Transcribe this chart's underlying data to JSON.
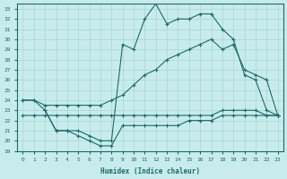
{
  "xlabel": "Humidex (Indice chaleur)",
  "ylabel": "",
  "background_color": "#c8ecec",
  "grid_color": "#aad4d4",
  "line_color": "#1a6b6b",
  "xlim": [
    -0.5,
    23.5
  ],
  "ylim": [
    19,
    33.5
  ],
  "yticks": [
    19,
    20,
    21,
    22,
    23,
    24,
    25,
    26,
    27,
    28,
    29,
    30,
    31,
    32,
    33
  ],
  "xticks": [
    0,
    1,
    2,
    3,
    4,
    5,
    6,
    7,
    8,
    9,
    10,
    11,
    12,
    13,
    14,
    15,
    16,
    17,
    18,
    19,
    20,
    21,
    22,
    23
  ],
  "series": [
    {
      "x": [
        0,
        1,
        2,
        3,
        4,
        5,
        6,
        7,
        8,
        9,
        10,
        11,
        12,
        13,
        14,
        15,
        16,
        17,
        18,
        19,
        20,
        21,
        22,
        23
      ],
      "y": [
        22.5,
        22.5,
        22.5,
        22.5,
        22.5,
        22.5,
        22.5,
        22.5,
        22.5,
        22.5,
        22.5,
        22.5,
        22.5,
        22.5,
        22.5,
        22.5,
        22.5,
        22.5,
        23,
        23,
        23,
        23,
        22.5,
        22.5
      ]
    },
    {
      "x": [
        0,
        1,
        2,
        3,
        4,
        5,
        6,
        7,
        8,
        9,
        10,
        11,
        12,
        13,
        14,
        15,
        16,
        17,
        18,
        19,
        20,
        21,
        22,
        23
      ],
      "y": [
        24,
        24,
        23.5,
        23.5,
        23.5,
        23.5,
        23.5,
        23.5,
        24,
        24.5,
        25.5,
        26.5,
        27,
        28,
        28.5,
        29,
        29.5,
        30,
        29,
        29.5,
        27,
        26.5,
        26,
        22.5
      ]
    },
    {
      "x": [
        0,
        1,
        2,
        3,
        4,
        5,
        6,
        7,
        8,
        9,
        10,
        11,
        12,
        13,
        14,
        15,
        16,
        17,
        18,
        19,
        20,
        21,
        22,
        23
      ],
      "y": [
        24,
        24,
        23,
        21,
        21,
        21,
        20.5,
        20,
        20,
        29.5,
        29,
        32,
        33.5,
        31.5,
        32,
        32,
        32.5,
        32.5,
        31,
        30,
        26.5,
        26,
        23,
        22.5
      ]
    },
    {
      "x": [
        2,
        3,
        4,
        5,
        6,
        7,
        8,
        9,
        10,
        11,
        12,
        13,
        14,
        15,
        16,
        17,
        18,
        19,
        20,
        21,
        22,
        23
      ],
      "y": [
        23,
        21,
        21,
        20.5,
        20,
        19.5,
        19.5,
        21.5,
        21.5,
        21.5,
        21.5,
        21.5,
        21.5,
        22,
        22,
        22,
        22.5,
        22.5,
        22.5,
        22.5,
        22.5,
        22.5
      ]
    }
  ]
}
